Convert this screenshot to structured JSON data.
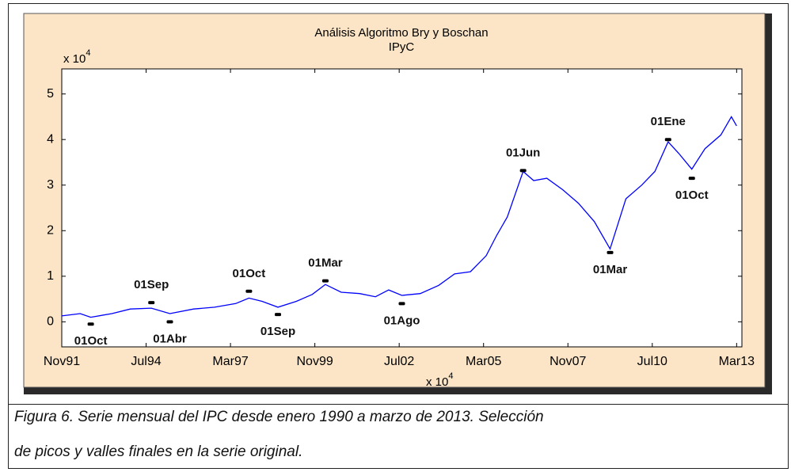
{
  "chart_data": {
    "type": "line",
    "title": [
      "Análisis Algoritmo Bry y Boschan",
      "IPyC"
    ],
    "y_axis_multiplier": {
      "base": "x 10",
      "exponent": "4"
    },
    "x_axis_multiplier": {
      "base": "x 10",
      "exponent": "4"
    },
    "x": [
      "1991-11",
      "1992-06",
      "1992-10",
      "1993-06",
      "1994-01",
      "1994-09",
      "1995-04",
      "1996-01",
      "1996-09",
      "1997-05",
      "1997-10",
      "1998-03",
      "1998-09",
      "1999-04",
      "1999-10",
      "2000-03",
      "2000-09",
      "2001-04",
      "2001-10",
      "2002-03",
      "2002-08",
      "2003-03",
      "2003-10",
      "2004-04",
      "2004-10",
      "2005-04",
      "2005-08",
      "2005-12",
      "2006-03",
      "2006-06",
      "2006-10",
      "2007-03",
      "2007-09",
      "2008-03",
      "2008-09",
      "2009-03",
      "2009-09",
      "2010-03",
      "2010-08",
      "2011-01",
      "2011-05",
      "2011-10",
      "2012-03",
      "2012-09",
      "2013-01",
      "2013-03"
    ],
    "series": [
      {
        "name": "IPyC",
        "color": "#0000ff",
        "values": [
          0.13,
          0.18,
          0.1,
          0.18,
          0.28,
          0.3,
          0.18,
          0.28,
          0.32,
          0.4,
          0.52,
          0.45,
          0.32,
          0.45,
          0.6,
          0.82,
          0.65,
          0.62,
          0.55,
          0.7,
          0.58,
          0.62,
          0.8,
          1.05,
          1.1,
          1.45,
          1.9,
          2.3,
          2.8,
          3.3,
          3.1,
          3.15,
          2.9,
          2.6,
          2.2,
          1.6,
          2.7,
          3.0,
          3.3,
          3.95,
          3.7,
          3.35,
          3.8,
          4.1,
          4.5,
          4.3
        ]
      }
    ],
    "xlim": [
      "1991-11",
      "2013-05"
    ],
    "xticks": [
      {
        "value": "1991-11",
        "label": "Nov91"
      },
      {
        "value": "1994-07",
        "label": "Jul94"
      },
      {
        "value": "1997-03",
        "label": "Mar97"
      },
      {
        "value": "1999-11",
        "label": "Nov99"
      },
      {
        "value": "2002-07",
        "label": "Jul02"
      },
      {
        "value": "2005-03",
        "label": "Mar05"
      },
      {
        "value": "2007-11",
        "label": "Nov07"
      },
      {
        "value": "2010-07",
        "label": "Jul10"
      },
      {
        "value": "2013-03",
        "label": "Mar13"
      }
    ],
    "ylim": [
      -0.55,
      5.55
    ],
    "yticks": [
      0,
      1,
      2,
      3,
      4,
      5
    ],
    "annotations": [
      {
        "text": "01Oct",
        "x": "1992-10",
        "y": -0.05,
        "position": "below"
      },
      {
        "text": "01Sep",
        "x": "1994-09",
        "y": 0.42,
        "position": "above"
      },
      {
        "text": "01Abr",
        "x": "1995-04",
        "y": 0.0,
        "position": "below"
      },
      {
        "text": "01Oct",
        "x": "1997-10",
        "y": 0.67,
        "position": "above"
      },
      {
        "text": "01Sep",
        "x": "1998-09",
        "y": 0.16,
        "position": "below"
      },
      {
        "text": "01Mar",
        "x": "2000-03",
        "y": 0.9,
        "position": "above"
      },
      {
        "text": "01Ago",
        "x": "2002-08",
        "y": 0.4,
        "position": "below"
      },
      {
        "text": "01Jun",
        "x": "2006-06",
        "y": 3.32,
        "position": "above"
      },
      {
        "text": "01Mar",
        "x": "2009-03",
        "y": 1.52,
        "position": "below"
      },
      {
        "text": "01Ene",
        "x": "2011-01",
        "y": 4.0,
        "position": "above"
      },
      {
        "text": "01Oct",
        "x": "2011-10",
        "y": 3.15,
        "position": "below"
      }
    ]
  },
  "caption": [
    "Figura 6. Serie mensual del IPC desde enero 1990 a marzo de 2013. Selección",
    "de picos y valles finales en la serie original."
  ]
}
